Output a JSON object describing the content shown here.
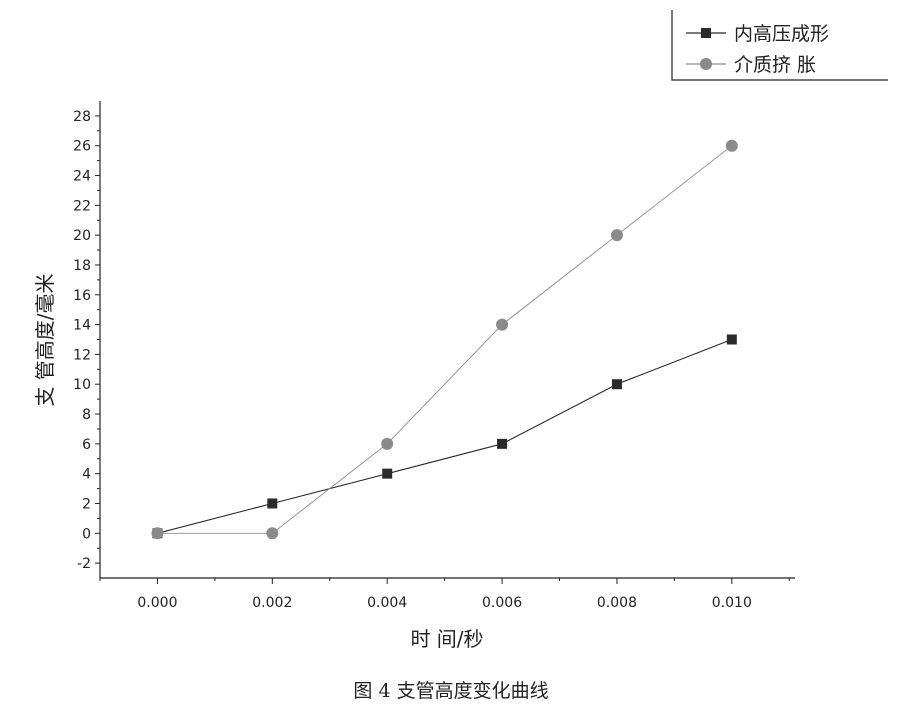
{
  "chart_data": {
    "type": "line",
    "title": "",
    "caption": "图 4 支管高度变化曲线",
    "xlabel": "时 间/秒",
    "ylabel": "支 管高度/毫米",
    "x": [
      0.0,
      0.002,
      0.004,
      0.006,
      0.008,
      0.01
    ],
    "x_ticks": [
      "0.000",
      "0.002",
      "0.004",
      "0.006",
      "0.008",
      "0.010"
    ],
    "xlim": [
      -0.001,
      0.0111
    ],
    "y_ticks": [
      -2,
      0,
      2,
      4,
      6,
      8,
      10,
      12,
      14,
      16,
      18,
      20,
      22,
      24,
      26,
      28
    ],
    "ylim": [
      -3,
      29
    ],
    "grid": false,
    "legend_position": "top-right",
    "series": [
      {
        "name": "内高压成形",
        "marker": "square",
        "color": "#2a2a2a",
        "values": [
          0,
          2,
          4,
          6,
          10,
          13
        ]
      },
      {
        "name": "介质挤 胀",
        "marker": "circle",
        "color": "#8a8a8a",
        "values": [
          0,
          0,
          6,
          14,
          20,
          26
        ]
      }
    ]
  }
}
